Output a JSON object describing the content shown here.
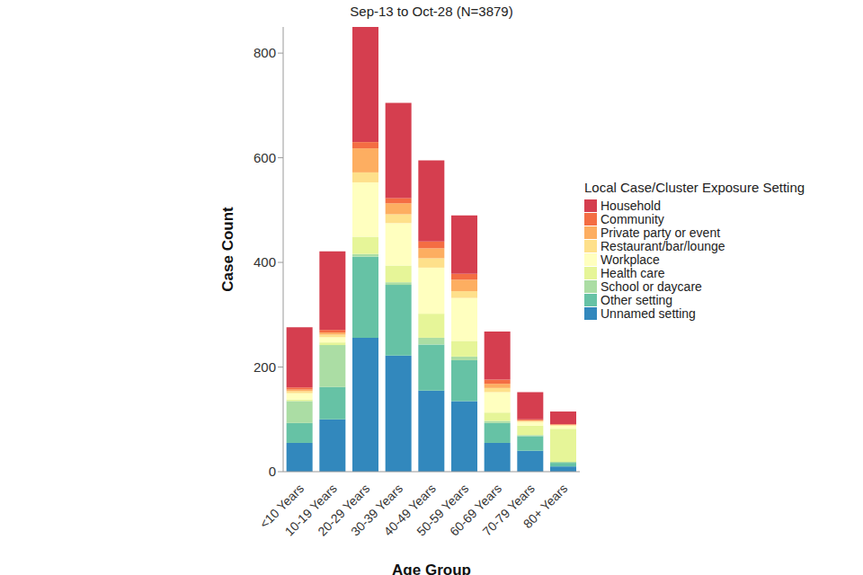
{
  "chart_data": {
    "type": "bar",
    "title": "Sep-13 to Oct-28 (N=3879)",
    "x_label": "Age Group",
    "y_label": "Case Count",
    "legend_title": "Local Case/Cluster Exposure Setting",
    "categories": [
      "<10 Years",
      "10-19 Years",
      "20-29 Years",
      "30-39 Years",
      "40-49 Years",
      "50-59 Years",
      "60-69 Years",
      "70-79 Years",
      "80+ Years"
    ],
    "stacked": true,
    "legend": "right",
    "grid": false,
    "ylim": [
      0,
      850
    ],
    "yticks": [
      0,
      200,
      400,
      600,
      800
    ],
    "series": [
      {
        "name": "Unnamed setting",
        "color": "#3288bd",
        "values": [
          55,
          100,
          256,
          222,
          155,
          135,
          55,
          40,
          10
        ]
      },
      {
        "name": "Other setting",
        "color": "#66c2a5",
        "values": [
          38,
          62,
          155,
          135,
          88,
          78,
          38,
          28,
          7
        ]
      },
      {
        "name": "School or daycare",
        "color": "#abdda4",
        "values": [
          42,
          80,
          5,
          5,
          13,
          7,
          4,
          2,
          2
        ]
      },
      {
        "name": "Health care",
        "color": "#e6f598",
        "values": [
          3,
          5,
          33,
          32,
          46,
          30,
          16,
          18,
          63
        ]
      },
      {
        "name": "Workplace",
        "color": "#ffffbf",
        "values": [
          12,
          10,
          104,
          81,
          88,
          82,
          39,
          7,
          6
        ]
      },
      {
        "name": "Restaurant/bar/lounge",
        "color": "#fee08b",
        "values": [
          4,
          5,
          19,
          17,
          18,
          13,
          8,
          2,
          1
        ]
      },
      {
        "name": "Private party or event",
        "color": "#fdae61",
        "values": [
          3,
          4,
          46,
          21,
          19,
          22,
          8,
          1,
          1
        ]
      },
      {
        "name": "Community",
        "color": "#f46d43",
        "values": [
          4,
          5,
          12,
          10,
          13,
          11,
          8,
          2,
          1
        ]
      },
      {
        "name": "Household",
        "color": "#d53e4f",
        "values": [
          115,
          150,
          220,
          182,
          155,
          112,
          92,
          52,
          24
        ]
      }
    ]
  }
}
